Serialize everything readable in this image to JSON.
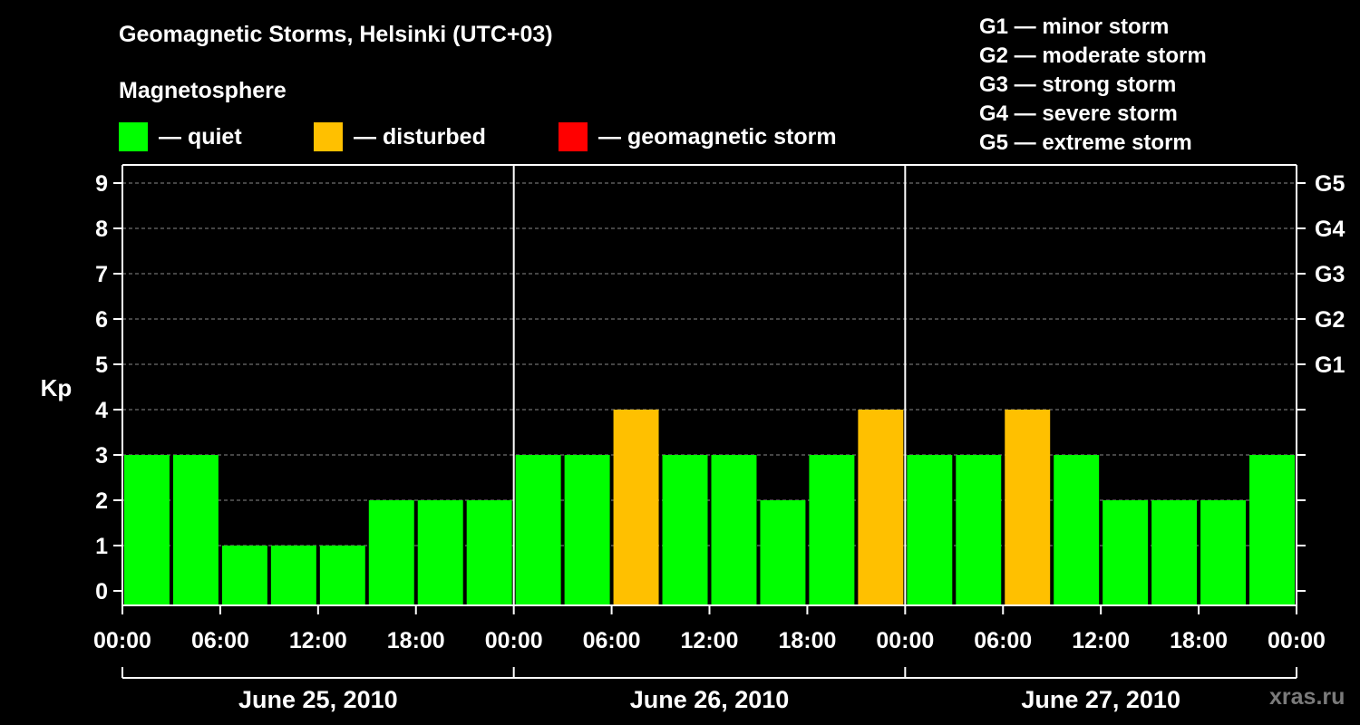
{
  "title": "Geomagnetic Storms, Helsinki (UTC+03)",
  "subtitle": "Magnetosphere",
  "legend": [
    {
      "label": "— quiet",
      "color": "#00ff00"
    },
    {
      "label": "— disturbed",
      "color": "#ffc000"
    },
    {
      "label": "— geomagnetic storm",
      "color": "#ff0000"
    }
  ],
  "g_legend": [
    "G1 — minor storm",
    "G2 — moderate storm",
    "G3 — strong storm",
    "G4 — severe storm",
    "G5 — extreme storm"
  ],
  "watermark": "xras.ru",
  "chart_data": {
    "type": "bar",
    "title": "Geomagnetic Storms, Helsinki (UTC+03)",
    "ylabel": "Kp",
    "ylim": [
      0,
      9
    ],
    "y_ticks": [
      "0",
      "1",
      "2",
      "3",
      "4",
      "5",
      "6",
      "7",
      "8",
      "9"
    ],
    "right_ticks": [
      {
        "kp": 5,
        "label": "G1"
      },
      {
        "kp": 6,
        "label": "G2"
      },
      {
        "kp": 7,
        "label": "G3"
      },
      {
        "kp": 8,
        "label": "G4"
      },
      {
        "kp": 9,
        "label": "G5"
      }
    ],
    "x_tick_labels": [
      "00:00",
      "06:00",
      "12:00",
      "18:00",
      "00:00",
      "06:00",
      "12:00",
      "18:00",
      "00:00",
      "06:00",
      "12:00",
      "18:00",
      "00:00"
    ],
    "days": [
      "June 25, 2010",
      "June 26, 2010",
      "June 27, 2010"
    ],
    "bars_per_day": 8,
    "values": [
      3,
      3,
      1,
      1,
      1,
      2,
      2,
      2,
      3,
      3,
      4,
      3,
      3,
      2,
      3,
      4,
      3,
      3,
      4,
      3,
      2,
      2,
      2,
      3
    ],
    "colors": {
      "quiet": "#00ff00",
      "disturbed": "#ffc000",
      "storm": "#ff0000"
    },
    "thresholds": {
      "disturbed": 4,
      "storm": 5
    },
    "grid": true
  }
}
